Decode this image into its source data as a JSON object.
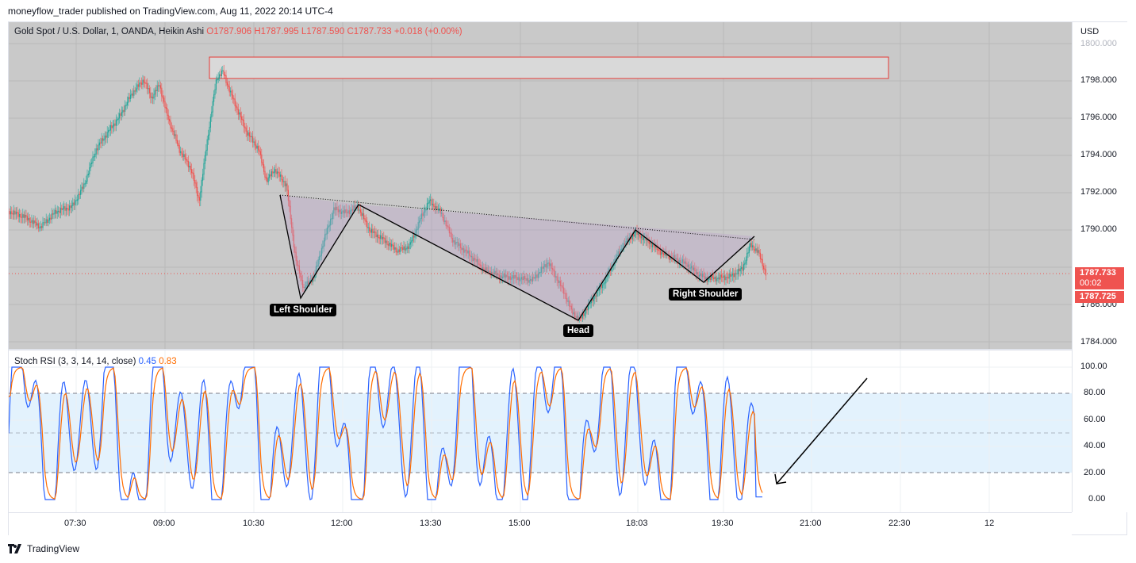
{
  "header": {
    "text": "moneyflow_trader published on TradingView.com, Aug 11, 2022 20:14 UTC-4"
  },
  "legend": {
    "symbol": "Gold Spot / U.S. Dollar, 1, OANDA, Heikin Ashi",
    "o": "O1787.906",
    "h": "H1787.995",
    "l": "L1787.590",
    "c": "C1787.733",
    "chg": "+0.018 (+0.00%)"
  },
  "oscillator": {
    "title": "Stoch RSI (3, 3, 14, 14, close)",
    "k": "0.45",
    "d": "0.83"
  },
  "price_axis": {
    "currency": "USD",
    "ticks": [
      "1800.000",
      "1798.000",
      "1796.000",
      "1794.000",
      "1792.000",
      "1790.000",
      "1786.000",
      "1784.000"
    ],
    "last_price": "1787.733",
    "countdown": "00:02",
    "second_price": "1787.725"
  },
  "osc_axis": {
    "ticks": [
      "100.00",
      "80.00",
      "60.00",
      "40.00",
      "20.00",
      "0.00"
    ]
  },
  "time_axis": {
    "ticks": [
      "07:30",
      "09:00",
      "10:30",
      "12:00",
      "13:30",
      "15:00",
      "18:03",
      "19:30",
      "21:00",
      "22:30",
      "12"
    ]
  },
  "annotations": {
    "left_shoulder": "Left Shoulder",
    "head": "Head",
    "right_shoulder": "Right Shoulder"
  },
  "footer": {
    "brand": "TradingView"
  },
  "colors": {
    "up": "#26a69a",
    "down": "#ef5350",
    "k_line": "#2962ff",
    "d_line": "#ff6d00",
    "box_border": "#e53935"
  }
}
